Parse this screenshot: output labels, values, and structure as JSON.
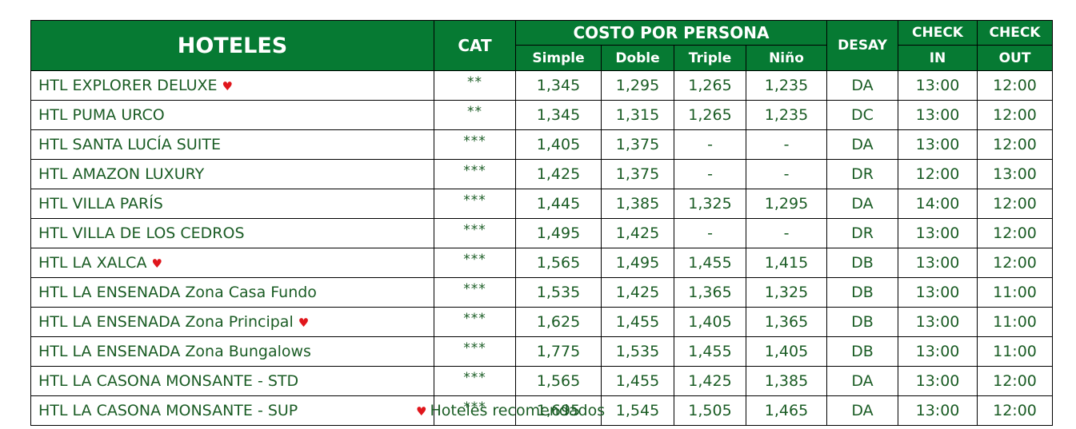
{
  "header": {
    "hotels": "HOTELES",
    "cat": "CAT",
    "cost": "COSTO POR PERSONA",
    "simple": "Simple",
    "double": "Doble",
    "triple": "Triple",
    "child": "Niño",
    "breakfast": "DESAY",
    "check_in_top": "CHECK",
    "check_in_bottom": "IN",
    "check_out_top": "CHECK",
    "check_out_bottom": "OUT"
  },
  "rows": [
    {
      "name": "HTL EXPLORER DELUXE",
      "heart": true,
      "cat": "**",
      "simple": "1,345",
      "double": "1,295",
      "triple": "1,265",
      "child": "1,235",
      "breakfast": "DA",
      "check_in": "13:00",
      "check_out": "12:00"
    },
    {
      "name": "HTL PUMA URCO",
      "heart": false,
      "cat": "**",
      "simple": "1,345",
      "double": "1,315",
      "triple": "1,265",
      "child": "1,235",
      "breakfast": "DC",
      "check_in": "13:00",
      "check_out": "12:00"
    },
    {
      "name": "HTL SANTA LUCÍA SUITE",
      "heart": false,
      "cat": "***",
      "simple": "1,405",
      "double": "1,375",
      "triple": "-",
      "child": "-",
      "breakfast": "DA",
      "check_in": "13:00",
      "check_out": "12:00"
    },
    {
      "name": "HTL AMAZON LUXURY",
      "heart": false,
      "cat": "***",
      "simple": "1,425",
      "double": "1,375",
      "triple": "-",
      "child": "-",
      "breakfast": "DR",
      "check_in": "12:00",
      "check_out": "13:00"
    },
    {
      "name": "HTL VILLA PARÍS",
      "heart": false,
      "cat": "***",
      "simple": "1,445",
      "double": "1,385",
      "triple": "1,325",
      "child": "1,295",
      "breakfast": "DA",
      "check_in": "14:00",
      "check_out": "12:00"
    },
    {
      "name": "HTL VILLA DE LOS CEDROS",
      "heart": false,
      "cat": "***",
      "simple": "1,495",
      "double": "1,425",
      "triple": "-",
      "child": "-",
      "breakfast": "DR",
      "check_in": "13:00",
      "check_out": "12:00"
    },
    {
      "name": "HTL LA XALCA",
      "heart": true,
      "cat": "***",
      "simple": "1,565",
      "double": "1,495",
      "triple": "1,455",
      "child": "1,415",
      "breakfast": "DB",
      "check_in": "13:00",
      "check_out": "12:00"
    },
    {
      "name": "HTL LA ENSENADA Zona Casa Fundo",
      "heart": false,
      "cat": "***",
      "simple": "1,535",
      "double": "1,425",
      "triple": "1,365",
      "child": "1,325",
      "breakfast": "DB",
      "check_in": "13:00",
      "check_out": "11:00"
    },
    {
      "name": "HTL LA ENSENADA Zona Principal",
      "heart": true,
      "cat": "***",
      "simple": "1,625",
      "double": "1,455",
      "triple": "1,405",
      "child": "1,365",
      "breakfast": "DB",
      "check_in": "13:00",
      "check_out": "11:00"
    },
    {
      "name": "HTL LA ENSENADA Zona Bungalows",
      "heart": false,
      "cat": "***",
      "simple": "1,775",
      "double": "1,535",
      "triple": "1,455",
      "child": "1,405",
      "breakfast": "DB",
      "check_in": "13:00",
      "check_out": "11:00"
    },
    {
      "name": "HTL LA CASONA MONSANTE - STD",
      "heart": false,
      "cat": "***",
      "simple": "1,565",
      "double": "1,455",
      "triple": "1,425",
      "child": "1,385",
      "breakfast": "DA",
      "check_in": "13:00",
      "check_out": "12:00"
    },
    {
      "name": "HTL LA CASONA MONSANTE - SUP",
      "heart": false,
      "cat": "***",
      "simple": "1,695",
      "double": "1,545",
      "triple": "1,505",
      "child": "1,465",
      "breakfast": "DA",
      "check_in": "13:00",
      "check_out": "12:00"
    }
  ],
  "footer": {
    "heart_glyph": "♥",
    "note": "Hoteles recomendados"
  },
  "colors": {
    "header_bg": "#067a33",
    "header_text": "#ffffff",
    "cell_text": "#1a5c24",
    "heart": "#e0161c"
  }
}
